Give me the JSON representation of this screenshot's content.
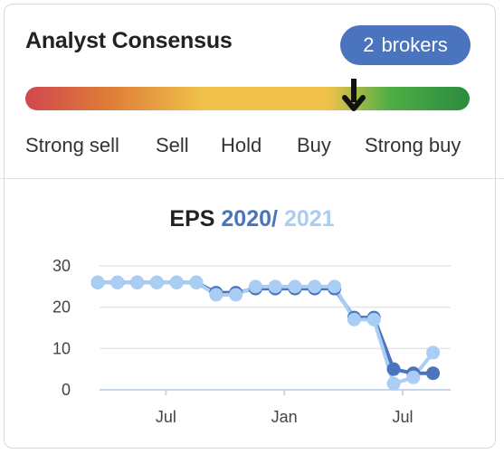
{
  "widget": {
    "title": "Analyst Consensus",
    "brokers_count": "2",
    "brokers_label": "brokers"
  },
  "consensus": {
    "scale": [
      "Strong sell",
      "Sell",
      "Hold",
      "Buy",
      "Strong buy"
    ],
    "value": 0.74,
    "marker_icon": "arrow-down-icon",
    "gradient_colors": [
      "#d1474f",
      "#dd7a38",
      "#f0c24a",
      "#4fae45",
      "#2a8b3f"
    ]
  },
  "eps": {
    "label": "EPS",
    "year1": "2020",
    "separator": "/",
    "year2": "2021"
  },
  "chart_data": {
    "type": "line",
    "title": "EPS 2020 / 2021",
    "x": [
      "2019-04",
      "2019-05",
      "2019-06",
      "2019-07",
      "2019-08",
      "2019-09",
      "2019-10",
      "2019-11",
      "2019-12",
      "2020-01",
      "2020-02",
      "2020-03",
      "2020-04",
      "2020-05",
      "2020-06",
      "2020-07",
      "2020-08",
      "2020-09"
    ],
    "x_tick_labels": [
      "Jul",
      "Jan",
      "Jul"
    ],
    "x_tick_positions": [
      "2019-07",
      "2020-01",
      "2020-07"
    ],
    "y_ticks": [
      0,
      10,
      20,
      30
    ],
    "ylim": [
      0,
      30
    ],
    "grid": true,
    "series": [
      {
        "name": "2020",
        "color": "#4a74bd",
        "values": [
          26,
          26,
          26,
          26,
          26,
          26,
          23.5,
          23.5,
          24.5,
          24.5,
          24.5,
          24.5,
          24.5,
          17.5,
          17.5,
          5,
          4,
          4
        ]
      },
      {
        "name": "2021",
        "color": "#a9cdf3",
        "values": [
          26,
          26,
          26,
          26,
          26,
          26,
          23,
          23,
          25,
          25,
          25,
          25,
          25,
          17,
          17,
          1.5,
          3,
          9
        ]
      }
    ]
  }
}
